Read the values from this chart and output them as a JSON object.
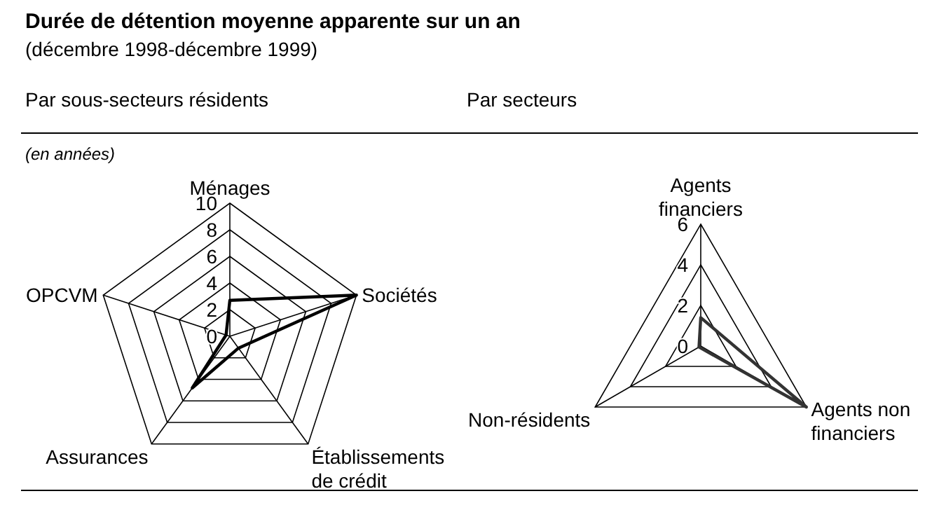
{
  "chart_data": [
    {
      "type": "radar",
      "title": "Durée de détention moyenne apparente sur un an",
      "subtitle": "(décembre 1998-décembre 1999)",
      "annotations": [
        "Par sous-secteurs résidents"
      ],
      "ylabel": "(en années)",
      "categories": [
        "Ménages",
        "Sociétés",
        "Établissements de crédit",
        "Assurances",
        "OPCVM"
      ],
      "series": [
        {
          "color": "#000000",
          "values": [
            2.7,
            10,
            1.1,
            4.8,
            0.3
          ]
        }
      ],
      "ylim": [
        0,
        10
      ],
      "yticks": [
        0,
        2,
        4,
        6,
        8,
        10
      ],
      "grid": true,
      "legend": false
    },
    {
      "type": "radar",
      "title": "Par secteurs",
      "categories": [
        "Agents financiers",
        "Agents non financiers",
        "Non-résidents"
      ],
      "series": [
        {
          "color": "#333333",
          "values": [
            1.4,
            6,
            0.1
          ]
        }
      ],
      "ylim": [
        0,
        6
      ],
      "yticks": [
        0,
        2,
        4,
        6
      ],
      "grid": true,
      "legend": false
    }
  ]
}
